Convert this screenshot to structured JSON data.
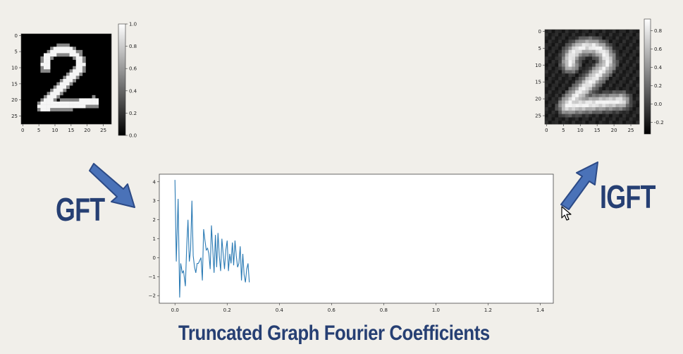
{
  "labels": {
    "gft": "GFT",
    "igft": "IGFT",
    "caption": "Truncated Graph Fourier Coefficients"
  },
  "colors": {
    "label_text": "#263f73",
    "arrow_fill": "#4a72b8",
    "arrow_stroke": "#2c4a86",
    "series_line": "#2a7ab4",
    "background": "#f1efea"
  },
  "icons": [
    "arrow-down-right-icon",
    "arrow-up-right-icon",
    "mouse-pointer-icon"
  ],
  "input_image": {
    "x_ticks": [
      "0",
      "5",
      "10",
      "15",
      "20",
      "25"
    ],
    "y_ticks": [
      "0",
      "5",
      "10",
      "15",
      "20",
      "25"
    ],
    "colorbar_ticks": [
      "1.0",
      "0.8",
      "0.6",
      "0.4",
      "0.2",
      "0.0"
    ],
    "colormap": "grayscale",
    "content": "digit-2"
  },
  "reconstructed_image": {
    "x_ticks": [
      "0",
      "5",
      "10",
      "15",
      "20",
      "25"
    ],
    "y_ticks": [
      "0",
      "5",
      "10",
      "15",
      "20",
      "25"
    ],
    "colorbar_ticks": [
      "0.8",
      "0.6",
      "0.4",
      "0.2",
      "0.0",
      "-0.2"
    ],
    "colormap": "grayscale",
    "content": "blurred-digit-2"
  },
  "chart_data": {
    "type": "line",
    "xlim": [
      -0.06,
      1.45
    ],
    "ylim": [
      -2.4,
      4.4
    ],
    "x_ticks": [
      "0.0",
      "0.2",
      "0.4",
      "0.6",
      "0.8",
      "1.0",
      "1.2",
      "1.4"
    ],
    "y_ticks": [
      "4",
      "3",
      "2",
      "1",
      "0",
      "−1",
      "−2"
    ],
    "grid": false,
    "x": [
      0.0,
      0.005,
      0.012,
      0.018,
      0.022,
      0.028,
      0.033,
      0.04,
      0.045,
      0.05,
      0.055,
      0.06,
      0.065,
      0.07,
      0.075,
      0.08,
      0.085,
      0.09,
      0.1,
      0.105,
      0.11,
      0.115,
      0.12,
      0.125,
      0.13,
      0.135,
      0.14,
      0.15,
      0.155,
      0.16,
      0.165,
      0.17,
      0.175,
      0.18,
      0.19,
      0.195,
      0.2,
      0.205,
      0.21,
      0.215,
      0.22,
      0.225,
      0.23,
      0.235,
      0.24,
      0.245,
      0.25,
      0.255,
      0.26,
      0.265,
      0.27,
      0.275,
      0.28,
      0.285
    ],
    "values": [
      4.1,
      -0.2,
      3.1,
      -2.1,
      -0.3,
      -0.8,
      -0.7,
      -1.5,
      0.6,
      2.0,
      -0.2,
      0.4,
      3.0,
      0.1,
      -0.5,
      -0.8,
      -0.3,
      -0.3,
      0.0,
      -1.2,
      1.5,
      0.9,
      0.4,
      0.5,
      0.2,
      -0.6,
      1.7,
      -0.8,
      1.2,
      -0.5,
      1.3,
      0.1,
      -0.7,
      1.0,
      -0.6,
      0.4,
      0.9,
      -0.7,
      0.2,
      -0.3,
      0.8,
      -0.4,
      0.9,
      0.1,
      -0.5,
      -0.3,
      0.6,
      -1.2,
      0.2,
      -0.9,
      -1.3,
      -0.6,
      -0.3,
      -1.3
    ]
  }
}
